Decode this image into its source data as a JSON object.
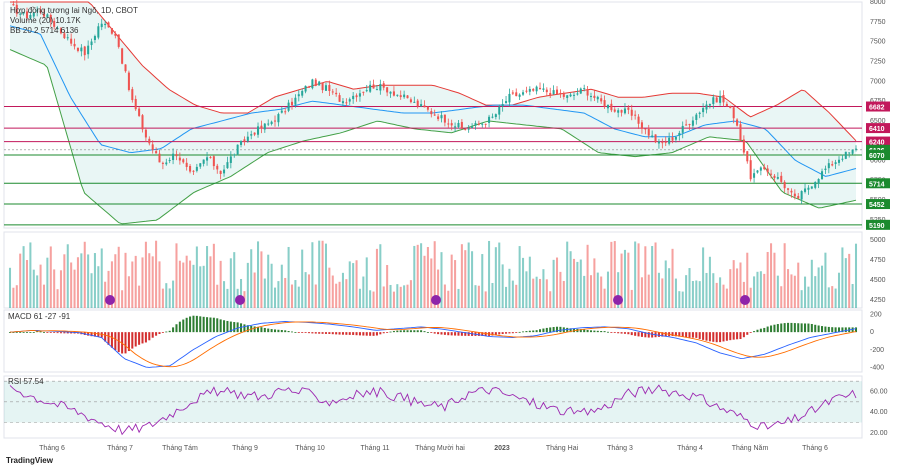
{
  "legend": {
    "main": "Hợp đồng tương lai Ngô, 1D, CBOT",
    "volume": "Volume (20) 10.17K",
    "bb": "BB 20 2 5714 6136",
    "macd": "MACD 61 -27 -91",
    "rsi": "RSI 57.54"
  },
  "brand": "TradingView",
  "colors": {
    "up": "#26a69a",
    "down": "#ef5350",
    "bb_basis": "#2196f3",
    "bb_upper": "#e53935",
    "bb_lower": "#43a047",
    "resistance": "#c2185b",
    "support": "#1b8a2e",
    "rsi_line": "#9c27b0",
    "macd_line": "#2962ff",
    "signal_line": "#ff6d00"
  },
  "chart_data": [
    {
      "type": "candlestick",
      "panel": "price",
      "x_labels": [
        "Tháng 6",
        "Tháng 7",
        "Tháng Tám",
        "Tháng 9",
        "Tháng 10",
        "Tháng 11",
        "Tháng Mười hai",
        "2023",
        "Tháng Hai",
        "Tháng 3",
        "Tháng 4",
        "Tháng Năm",
        "Tháng 6"
      ],
      "y_ticks": [
        8000,
        7750,
        7500,
        7250,
        7000,
        6750,
        6500,
        6250,
        6000,
        5750,
        5500,
        5250
      ],
      "ylim": [
        5150,
        8000
      ],
      "horizontal_levels": [
        {
          "value": 6682,
          "label": "6682",
          "kind": "resistance"
        },
        {
          "value": 6410,
          "label": "6410",
          "kind": "resistance"
        },
        {
          "value": 6240,
          "label": "6240",
          "kind": "resistance"
        },
        {
          "value": 6136,
          "label": "6136",
          "kind": "basis"
        },
        {
          "value": 6070,
          "label": "6070",
          "kind": "support"
        },
        {
          "value": 5714,
          "label": "5714",
          "kind": "support"
        },
        {
          "value": 5452,
          "label": "5452",
          "kind": "support"
        },
        {
          "value": 5190,
          "label": "5190",
          "kind": "support"
        }
      ],
      "close_path": [
        7950,
        7820,
        7900,
        7700,
        7500,
        7350,
        7750,
        7600,
        6800,
        6300,
        5950,
        6100,
        5800,
        6050,
        5850,
        6150,
        6350,
        6450,
        6600,
        6800,
        7000,
        6900,
        6750,
        6850,
        6950,
        6900,
        6800,
        6700,
        6600,
        6500,
        6400,
        6450,
        6550,
        6800,
        6850,
        6900,
        6850,
        6800,
        6900,
        6750,
        6650,
        6600,
        6400,
        6200,
        6300,
        6500,
        6700,
        6800,
        6550,
        5800,
        5900,
        5750,
        5500,
        5700,
        5900,
        6050,
        6136
      ],
      "bb_upper_path": [
        8000,
        8000,
        8000,
        8000,
        7600,
        7200,
        6900,
        6700,
        6600,
        6600,
        6800,
        6900,
        7000,
        6900,
        6950,
        6950,
        6950,
        6850,
        6700,
        6700,
        6800,
        6850,
        6900,
        6800,
        6800,
        6850,
        6850,
        6800,
        6550,
        6700,
        6900,
        6600,
        6250
      ],
      "bb_lower_path": [
        7400,
        7200,
        5600,
        5200,
        5250,
        5600,
        5800,
        6100,
        6250,
        6350,
        6500,
        6400,
        6350,
        6500,
        6450,
        6400,
        6100,
        6050,
        6100,
        6300,
        6250,
        5600,
        5400,
        5500
      ],
      "bb_basis_path": [
        7700,
        7600,
        6800,
        6200,
        6100,
        6150,
        6400,
        6500,
        6600,
        6650,
        6750,
        6700,
        6650,
        6600,
        6600,
        6650,
        6700,
        6700,
        6650,
        6600,
        6400,
        6300,
        6300,
        6450,
        6500,
        6400,
        6000,
        5800,
        5900
      ]
    },
    {
      "type": "bar",
      "panel": "volume",
      "y_ticks": [
        5000,
        4750,
        4500,
        4250
      ],
      "ylim": [
        4150,
        5100
      ],
      "legend": "Volume (20) 10.17K"
    },
    {
      "type": "histogram+line",
      "panel": "macd",
      "y_ticks": [
        200,
        0,
        -200,
        -400
      ],
      "ylim": [
        -450,
        250
      ],
      "values": {
        "macd": 61,
        "signal": -27,
        "histogram": -91
      }
    },
    {
      "type": "line",
      "panel": "rsi",
      "y_ticks": [
        60,
        40,
        20
      ],
      "ylim": [
        15,
        75
      ],
      "band": [
        30,
        70
      ],
      "mid": 50,
      "last_value": 57.54
    }
  ]
}
